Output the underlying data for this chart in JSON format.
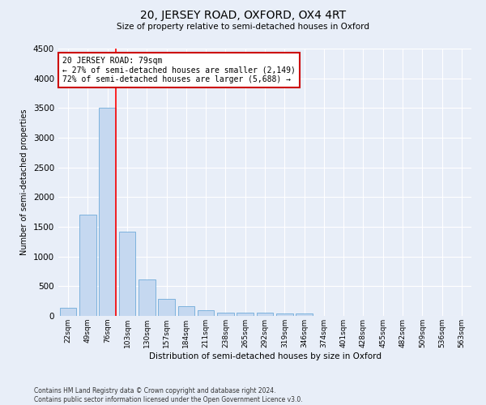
{
  "title": "20, JERSEY ROAD, OXFORD, OX4 4RT",
  "subtitle": "Size of property relative to semi-detached houses in Oxford",
  "xlabel": "Distribution of semi-detached houses by size in Oxford",
  "ylabel": "Number of semi-detached properties",
  "footnote1": "Contains HM Land Registry data © Crown copyright and database right 2024.",
  "footnote2": "Contains public sector information licensed under the Open Government Licence v3.0.",
  "categories": [
    "22sqm",
    "49sqm",
    "76sqm",
    "103sqm",
    "130sqm",
    "157sqm",
    "184sqm",
    "211sqm",
    "238sqm",
    "265sqm",
    "292sqm",
    "319sqm",
    "346sqm",
    "374sqm",
    "401sqm",
    "428sqm",
    "455sqm",
    "482sqm",
    "509sqm",
    "536sqm",
    "563sqm"
  ],
  "values": [
    130,
    1700,
    3500,
    1420,
    620,
    280,
    160,
    90,
    55,
    55,
    50,
    35,
    35,
    0,
    0,
    0,
    0,
    0,
    0,
    0,
    0
  ],
  "bar_color": "#c5d8f0",
  "bar_edge_color": "#5a9fd4",
  "red_line_x": 2,
  "annotation_title": "20 JERSEY ROAD: 79sqm",
  "annotation_line1": "← 27% of semi-detached houses are smaller (2,149)",
  "annotation_line2": "72% of semi-detached houses are larger (5,688) →",
  "annotation_box_color": "#ffffff",
  "annotation_box_edge": "#cc0000",
  "ylim": [
    0,
    4500
  ],
  "background_color": "#e8eef8",
  "grid_color": "#ffffff"
}
